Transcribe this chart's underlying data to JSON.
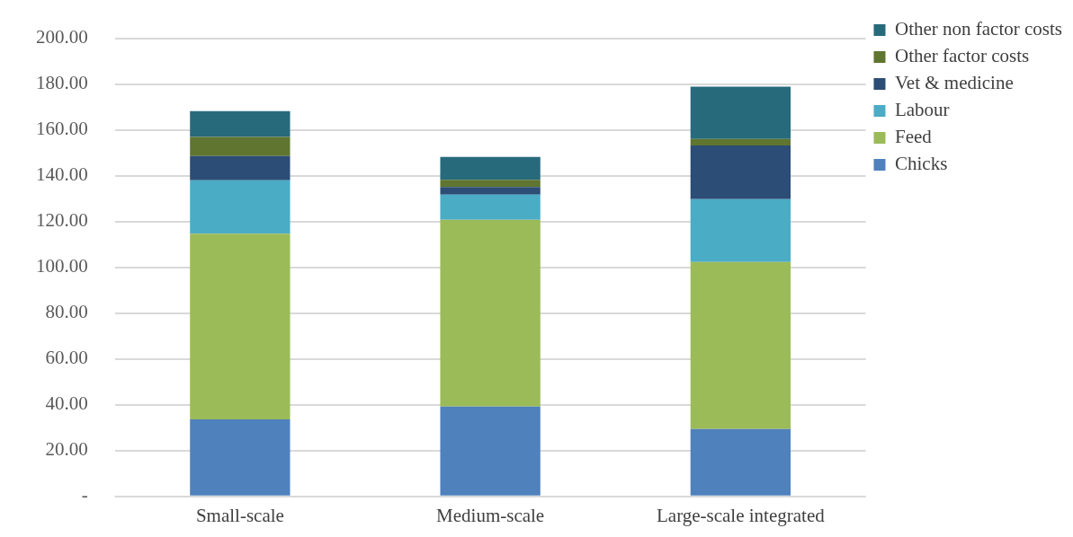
{
  "chart_data": {
    "type": "bar",
    "stacked": true,
    "categories": [
      "Small-scale",
      "Medium-scale",
      "Large-scale integrated"
    ],
    "series": [
      {
        "name": "Chicks",
        "color": "#4f81bd",
        "values": [
          33.6,
          39.2,
          29.4
        ]
      },
      {
        "name": "Feed",
        "color": "#9bbb59",
        "values": [
          81.1,
          81.6,
          72.9
        ]
      },
      {
        "name": "Labour",
        "color": "#4bacc6",
        "values": [
          23.3,
          10.9,
          27.5
        ]
      },
      {
        "name": "Vet & medicine",
        "color": "#2c4d75",
        "values": [
          10.6,
          3.4,
          23.4
        ]
      },
      {
        "name": "Other factor costs",
        "color": "#5f7530",
        "values": [
          8.3,
          3.1,
          2.8
        ]
      },
      {
        "name": "Other non factor costs",
        "color": "#276a7c",
        "values": [
          11.3,
          10.0,
          22.9
        ]
      }
    ],
    "ylim": [
      0,
      200
    ],
    "yticks": [
      {
        "value": 0,
        "label": "-"
      },
      {
        "value": 20,
        "label": "20.00"
      },
      {
        "value": 40,
        "label": "40.00"
      },
      {
        "value": 60,
        "label": "60.00"
      },
      {
        "value": 80,
        "label": "80.00"
      },
      {
        "value": 100,
        "label": "100.00"
      },
      {
        "value": 120,
        "label": "120.00"
      },
      {
        "value": 140,
        "label": "140.00"
      },
      {
        "value": 160,
        "label": "160.00"
      },
      {
        "value": 180,
        "label": "180.00"
      },
      {
        "value": 200,
        "label": "200.00"
      }
    ],
    "grid": "y",
    "legend": "right"
  }
}
